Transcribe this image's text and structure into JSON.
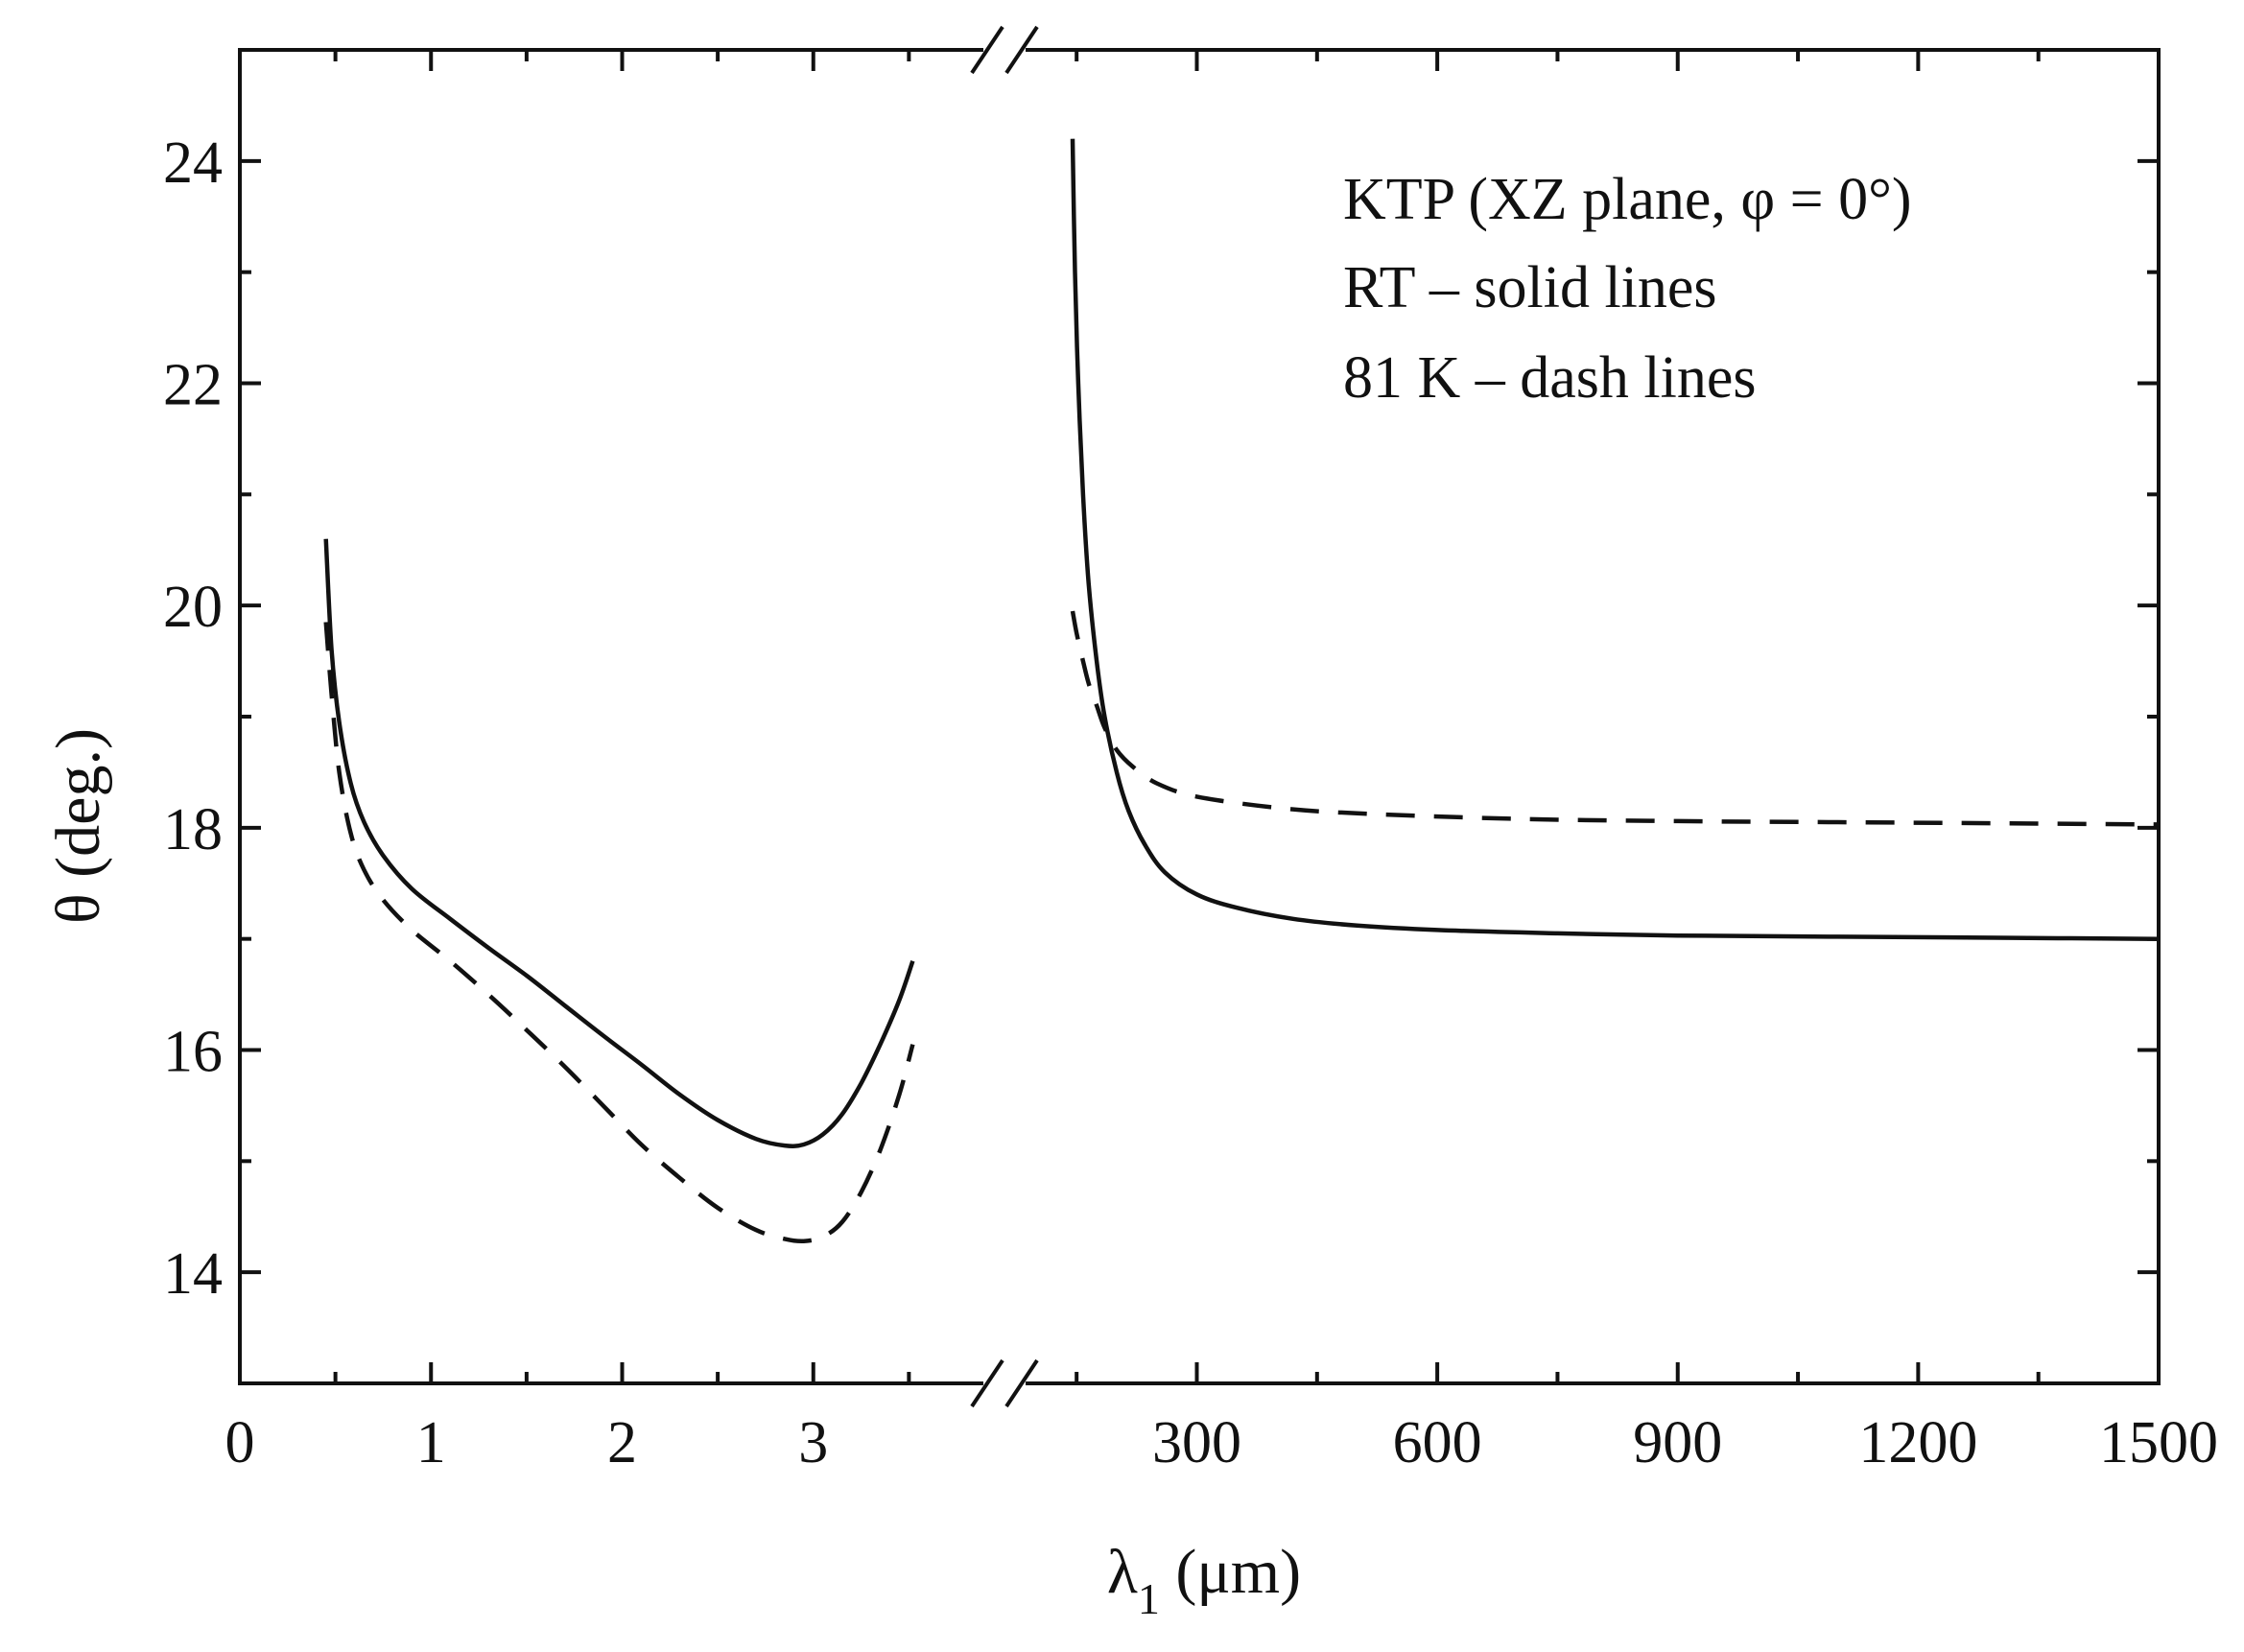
{
  "chart_data": {
    "type": "line",
    "title": "",
    "xlabel": "λ",
    "xlabel_sub": "1",
    "xlabel_unit": " (μm)",
    "ylabel": "θ (deg.)",
    "ylim": [
      13,
      25
    ],
    "yticks": [
      14,
      16,
      18,
      20,
      22,
      24
    ],
    "broken_x_axis": true,
    "segments": [
      {
        "name": "left",
        "xlim": [
          0,
          4
        ],
        "xticks": [
          0,
          1,
          2,
          3
        ]
      },
      {
        "name": "right",
        "xlim": [
          60,
          1500
        ],
        "xticks": [
          300,
          600,
          900,
          1200,
          1500
        ]
      }
    ],
    "series": [
      {
        "name": "RT",
        "style": "solid",
        "segment": "left",
        "x": [
          0.45,
          0.48,
          0.52,
          0.58,
          0.65,
          0.75,
          0.9,
          1.1,
          1.3,
          1.5,
          1.7,
          1.9,
          2.1,
          2.3,
          2.5,
          2.7,
          2.85,
          2.95,
          3.05,
          3.15,
          3.25,
          3.35,
          3.45,
          3.52
        ],
        "y": [
          20.6,
          19.6,
          18.95,
          18.4,
          18.05,
          17.75,
          17.45,
          17.18,
          16.92,
          16.67,
          16.4,
          16.13,
          15.87,
          15.6,
          15.37,
          15.2,
          15.14,
          15.15,
          15.24,
          15.42,
          15.7,
          16.05,
          16.45,
          16.8
        ]
      },
      {
        "name": "81 K",
        "style": "dashed",
        "segment": "left",
        "x": [
          0.45,
          0.48,
          0.52,
          0.58,
          0.65,
          0.75,
          0.9,
          1.1,
          1.3,
          1.5,
          1.7,
          1.9,
          2.1,
          2.3,
          2.5,
          2.7,
          2.85,
          2.95,
          3.05,
          3.15,
          3.25,
          3.35,
          3.45,
          3.52
        ],
        "y": [
          19.85,
          19.2,
          18.5,
          17.95,
          17.62,
          17.35,
          17.08,
          16.8,
          16.5,
          16.18,
          15.85,
          15.5,
          15.15,
          14.85,
          14.58,
          14.38,
          14.3,
          14.28,
          14.32,
          14.45,
          14.72,
          15.1,
          15.6,
          16.05
        ]
      },
      {
        "name": "RT",
        "style": "solid",
        "segment": "right",
        "x": [
          145,
          148,
          152,
          158,
          165,
          175,
          185,
          200,
          215,
          235,
          260,
          300,
          350,
          420,
          500,
          600,
          750,
          900,
          1100,
          1300,
          1500
        ],
        "y": [
          24.2,
          23.0,
          22.0,
          21.0,
          20.2,
          19.5,
          19.0,
          18.5,
          18.15,
          17.85,
          17.6,
          17.4,
          17.28,
          17.18,
          17.12,
          17.08,
          17.05,
          17.03,
          17.02,
          17.01,
          17.0
        ]
      },
      {
        "name": "81 K",
        "style": "dashed",
        "segment": "right",
        "x": [
          145,
          150,
          158,
          165,
          175,
          185,
          200,
          220,
          250,
          300,
          400,
          500,
          700,
          900,
          1100,
          1300,
          1500
        ],
        "y": [
          19.95,
          19.75,
          19.5,
          19.3,
          19.1,
          18.9,
          18.7,
          18.55,
          18.4,
          18.28,
          18.18,
          18.13,
          18.08,
          18.06,
          18.05,
          18.04,
          18.03
        ]
      }
    ],
    "annotations": [
      "KTP (XZ plane, φ = 0°)",
      "RT – solid lines",
      "81 K – dash lines"
    ]
  }
}
